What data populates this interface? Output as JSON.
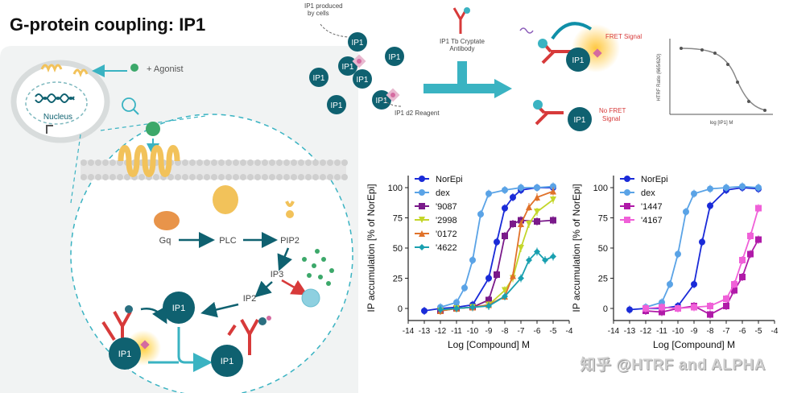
{
  "title": "G-protein coupling: IP1",
  "colors": {
    "teal": "#0f6170",
    "arrow": "#2aaec0",
    "receptor": "#f2c25a",
    "red": "#d73a3a",
    "orange": "#f0b04a"
  },
  "cell": {
    "agonist_label": "+ Agonist",
    "nucleus_label": "Nucleus",
    "gq": "Gq",
    "plc": "PLC",
    "pip2": "PIP2",
    "ip3": "IP3",
    "ip2": "IP2",
    "ip1": "IP1"
  },
  "assay": {
    "produced_label_1": "IP1 produced",
    "produced_label_2": "by cells",
    "ip1": "IP1",
    "antibody_label_1": "IP1 Tb Cryptate",
    "antibody_label_2": "Antibody",
    "d2_label": "IP1 d2 Reagent",
    "fret_label": "FRET Signal",
    "nofret_label_1": "No FRET",
    "nofret_label_2": "Signal"
  },
  "small_chart": {
    "ylabel": "HTRF Ratio (665/620)",
    "xlabel": "log [IP1] M"
  },
  "chart_data": [
    {
      "type": "line",
      "title": "",
      "xlabel": "Log [Compound] M",
      "ylabel": "IP accumulation [% of NorEpi]",
      "xlim": [
        -14,
        -4
      ],
      "ylim": [
        -10,
        110
      ],
      "xticks": [
        "-14",
        "-13",
        "-12",
        "-11",
        "-10",
        "-9",
        "-8",
        "-7",
        "-6",
        "-5",
        "-4"
      ],
      "yticks": [
        "0",
        "25",
        "50",
        "75",
        "100"
      ],
      "legend_position": "top-left",
      "series": [
        {
          "name": "NorEpi",
          "color": "#1a2bd8",
          "marker": "circle",
          "x": [
            -13,
            -12,
            -11,
            -10,
            -9,
            -8.5,
            -8,
            -7.5,
            -7,
            -6,
            -5
          ],
          "y": [
            -2,
            0,
            1,
            3,
            25,
            55,
            83,
            92,
            98,
            100,
            100
          ]
        },
        {
          "name": "dex",
          "color": "#5aa3e6",
          "marker": "circle",
          "x": [
            -12,
            -11,
            -10.5,
            -10,
            -9.5,
            -9,
            -8,
            -7,
            -6,
            -5
          ],
          "y": [
            1,
            5,
            17,
            40,
            78,
            95,
            98,
            100,
            100,
            101
          ]
        },
        {
          "name": "'9087",
          "color": "#7a1a8a",
          "marker": "square",
          "x": [
            -12,
            -11,
            -10,
            -9,
            -8.5,
            -8,
            -7.5,
            -7,
            -6,
            -5
          ],
          "y": [
            -2,
            0,
            1,
            7,
            28,
            60,
            70,
            73,
            72,
            73
          ]
        },
        {
          "name": "'2998",
          "color": "#c4d62a",
          "marker": "triangle-down",
          "x": [
            -12,
            -11,
            -10,
            -9,
            -8,
            -7.5,
            -7,
            -6.5,
            -6,
            -5
          ],
          "y": [
            -2,
            0,
            1,
            3,
            15,
            25,
            50,
            70,
            80,
            90
          ]
        },
        {
          "name": "'0172",
          "color": "#e0722a",
          "marker": "triangle-up",
          "x": [
            -12,
            -11,
            -10,
            -9,
            -8,
            -7.5,
            -7,
            -6.5,
            -6,
            -5
          ],
          "y": [
            -2,
            0,
            1,
            3,
            10,
            27,
            70,
            84,
            92,
            97
          ]
        },
        {
          "name": "'4622",
          "color": "#1aa0b0",
          "marker": "diamond",
          "x": [
            -12,
            -11,
            -10,
            -9,
            -8,
            -7,
            -6.5,
            -6,
            -5.5,
            -5
          ],
          "y": [
            -1,
            0,
            1,
            2,
            10,
            25,
            40,
            47,
            40,
            43
          ]
        }
      ]
    },
    {
      "type": "line",
      "title": "",
      "xlabel": "Log [Compound] M",
      "ylabel": "IP accumulation [% of NorEpi]",
      "xlim": [
        -14,
        -4
      ],
      "ylim": [
        -10,
        110
      ],
      "xticks": [
        "-14",
        "-13",
        "-12",
        "-11",
        "-10",
        "-9",
        "-8",
        "-7",
        "-6",
        "-5",
        "-4"
      ],
      "yticks": [
        "0",
        "25",
        "50",
        "75",
        "100"
      ],
      "legend_position": "top-left",
      "series": [
        {
          "name": "NorEpi",
          "color": "#1a2bd8",
          "marker": "circle",
          "x": [
            -13,
            -12,
            -11,
            -10,
            -9,
            -8.5,
            -8,
            -7,
            -6,
            -5
          ],
          "y": [
            -1,
            0,
            0,
            2,
            20,
            55,
            85,
            98,
            100,
            99
          ]
        },
        {
          "name": "dex",
          "color": "#5aa3e6",
          "marker": "circle",
          "x": [
            -12,
            -11,
            -10.5,
            -10,
            -9.5,
            -9,
            -8,
            -7,
            -6,
            -5
          ],
          "y": [
            1,
            5,
            20,
            45,
            80,
            95,
            99,
            100,
            101,
            100
          ]
        },
        {
          "name": "'1447",
          "color": "#b01aa8",
          "marker": "square",
          "x": [
            -12,
            -11,
            -10,
            -9,
            -8,
            -7,
            -6.5,
            -6,
            -5.5,
            -5
          ],
          "y": [
            -2,
            -3,
            0,
            2,
            -5,
            2,
            15,
            26,
            45,
            57
          ]
        },
        {
          "name": "'4167",
          "color": "#f060d8",
          "marker": "square",
          "x": [
            -12,
            -11,
            -10,
            -9,
            -8,
            -7,
            -6.5,
            -6,
            -5.5,
            -5
          ],
          "y": [
            0,
            1,
            0,
            1,
            2,
            8,
            20,
            40,
            60,
            83
          ]
        }
      ]
    }
  ],
  "watermark": "知乎 @HTRF and ALPHA"
}
